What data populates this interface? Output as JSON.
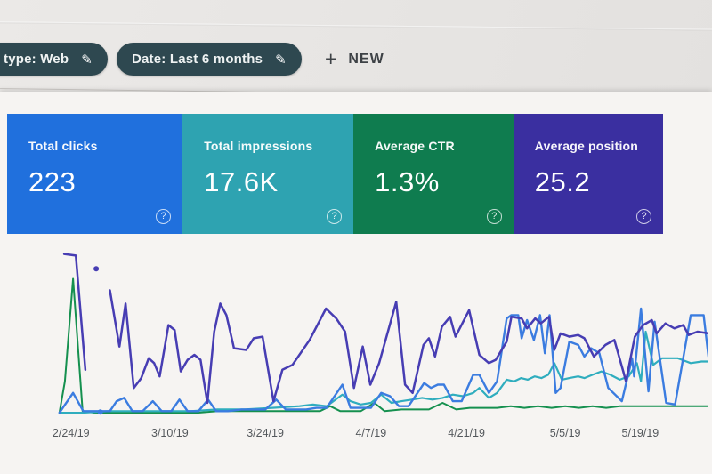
{
  "icons": {
    "pencil": "✎",
    "help": "?",
    "plus": "+"
  },
  "toolbar": {
    "filter_chips": [
      {
        "label": "type: Web"
      },
      {
        "label": "Date: Last 6 months"
      }
    ],
    "new_button": {
      "label": "NEW"
    },
    "chip_color": "#2e4850"
  },
  "cards": [
    {
      "label": "Total clicks",
      "value": "223",
      "color": "#2070dd"
    },
    {
      "label": "Total impressions",
      "value": "17.6K",
      "color": "#2ea3b1"
    },
    {
      "label": "Average CTR",
      "value": "1.3%",
      "color": "#0f7c4f"
    },
    {
      "label": "Average position",
      "value": "25.2",
      "color": "#3a2fa0"
    }
  ],
  "chart_data": {
    "type": "line",
    "title": "",
    "xlabel": "",
    "ylabel": "",
    "grid": false,
    "legend": "none (series colors match metric cards)",
    "x_tick_labels": [
      "2/24/19",
      "3/10/19",
      "3/24/19",
      "4/7/19",
      "4/21/19",
      "5/5/19",
      "5/19/19"
    ],
    "x_tick_positions_pct": [
      6.5,
      21,
      35,
      50.5,
      64.5,
      79,
      90
    ],
    "note": "points are [x%, y%] estimated from pixels; y% is height above baseline (0=baseline, 100=plot top)",
    "series": [
      {
        "name": "ctr",
        "color": "#15904f",
        "width": 2,
        "segments": [
          [
            [
              4.8,
              1
            ],
            [
              5.6,
              20
            ],
            [
              6.8,
              82
            ],
            [
              8.2,
              2
            ],
            [
              10,
              1
            ],
            [
              13,
              1
            ],
            [
              16,
              1
            ],
            [
              19,
              1
            ],
            [
              22,
              1
            ],
            [
              25,
              1
            ],
            [
              28,
              2
            ],
            [
              31,
              2
            ],
            [
              34,
              2
            ],
            [
              37,
              2
            ],
            [
              40,
              2
            ],
            [
              43,
              2
            ],
            [
              44.5,
              5
            ],
            [
              46,
              2
            ],
            [
              49,
              2
            ],
            [
              51,
              7
            ],
            [
              52.5,
              2
            ],
            [
              55,
              3
            ],
            [
              57,
              3
            ],
            [
              59,
              3
            ],
            [
              61,
              7
            ],
            [
              63,
              3
            ],
            [
              65,
              4
            ],
            [
              67,
              4
            ],
            [
              69,
              4
            ],
            [
              71,
              5
            ],
            [
              73,
              4
            ],
            [
              75,
              5
            ],
            [
              77,
              4
            ],
            [
              79,
              5
            ],
            [
              81,
              4
            ],
            [
              83,
              5
            ],
            [
              85,
              4
            ],
            [
              87,
              5
            ],
            [
              89,
              5
            ],
            [
              91,
              5
            ],
            [
              93,
              5
            ],
            [
              95,
              5
            ],
            [
              97,
              5
            ],
            [
              99,
              5
            ],
            [
              100,
              5
            ]
          ]
        ]
      },
      {
        "name": "impressions",
        "color": "#2fadbe",
        "width": 2.2,
        "segments": [
          [
            [
              4.8,
              1
            ],
            [
              8,
              1
            ],
            [
              12,
              2
            ],
            [
              16,
              2
            ],
            [
              20,
              2
            ],
            [
              24,
              2
            ],
            [
              28,
              3
            ],
            [
              32,
              3
            ],
            [
              36,
              4
            ],
            [
              40,
              5
            ],
            [
              42,
              6
            ],
            [
              44,
              5
            ],
            [
              46.3,
              12
            ],
            [
              47.5,
              8
            ],
            [
              49,
              6
            ],
            [
              50.5,
              7
            ],
            [
              52,
              12
            ],
            [
              53.5,
              7
            ],
            [
              55,
              8
            ],
            [
              56.5,
              9
            ],
            [
              58,
              10
            ],
            [
              59.5,
              9
            ],
            [
              61,
              10
            ],
            [
              62.5,
              12
            ],
            [
              64,
              11
            ],
            [
              65.5,
              13
            ],
            [
              66.4,
              16
            ],
            [
              67.8,
              10
            ],
            [
              69,
              13
            ],
            [
              70.4,
              21
            ],
            [
              71.5,
              20
            ],
            [
              72.5,
              22
            ],
            [
              73.5,
              21
            ],
            [
              74.5,
              23
            ],
            [
              75.5,
              22
            ],
            [
              76.5,
              24
            ],
            [
              77.4,
              31
            ],
            [
              78.5,
              21
            ],
            [
              79.6,
              22
            ],
            [
              80.9,
              23
            ],
            [
              81.8,
              22
            ],
            [
              83,
              24
            ],
            [
              84.3,
              26
            ],
            [
              85.6,
              24
            ],
            [
              87,
              21
            ],
            [
              88.3,
              23
            ],
            [
              89.5,
              31
            ],
            [
              90.1,
              20
            ],
            [
              90.8,
              50
            ],
            [
              91.9,
              30
            ],
            [
              93.2,
              34
            ],
            [
              95.5,
              34
            ],
            [
              97.4,
              31
            ],
            [
              99,
              32
            ],
            [
              100,
              32
            ]
          ]
        ]
      },
      {
        "name": "clicks",
        "color": "#3b7ce0",
        "width": 2.4,
        "dots": [
          [
            10.8,
            1.5
          ]
        ],
        "segments": [
          [
            [
              4.8,
              1
            ],
            [
              6.8,
              13
            ],
            [
              8.3,
              2
            ],
            [
              10.2,
              2
            ],
            [
              12.2,
              2
            ],
            [
              13.2,
              8
            ],
            [
              14.3,
              10
            ],
            [
              15.5,
              2
            ],
            [
              17,
              2
            ],
            [
              18.5,
              8
            ],
            [
              19.8,
              2
            ],
            [
              21.2,
              2
            ],
            [
              22.4,
              9
            ],
            [
              23.6,
              2
            ],
            [
              25.2,
              2
            ],
            [
              26.6,
              9
            ],
            [
              27.8,
              2
            ],
            [
              29.5,
              2
            ],
            [
              31.5,
              3
            ],
            [
              33.5,
              3
            ],
            [
              35,
              3
            ],
            [
              36.6,
              9
            ],
            [
              38,
              3
            ],
            [
              39.5,
              3
            ],
            [
              41,
              3
            ],
            [
              42.5,
              4
            ],
            [
              44,
              4
            ],
            [
              46.3,
              18
            ],
            [
              47.5,
              4
            ],
            [
              49,
              4
            ],
            [
              50.5,
              4
            ],
            [
              52,
              13
            ],
            [
              53.3,
              11
            ],
            [
              54.6,
              5
            ],
            [
              56,
              5
            ],
            [
              58.3,
              19
            ],
            [
              59.3,
              16
            ],
            [
              60.3,
              18
            ],
            [
              61.2,
              18
            ],
            [
              62.5,
              8
            ],
            [
              63.8,
              8
            ],
            [
              65.5,
              24
            ],
            [
              66.4,
              24
            ],
            [
              67.8,
              13
            ],
            [
              69,
              20
            ],
            [
              70.4,
              58
            ],
            [
              71.1,
              60
            ],
            [
              72.1,
              60
            ],
            [
              72.6,
              46
            ],
            [
              73.4,
              57
            ],
            [
              74.4,
              45
            ],
            [
              75.3,
              60
            ],
            [
              76,
              37
            ],
            [
              76.7,
              60
            ],
            [
              77.6,
              13
            ],
            [
              78.3,
              16
            ],
            [
              79.6,
              44
            ],
            [
              80.9,
              42
            ],
            [
              81.8,
              35
            ],
            [
              82.8,
              40
            ],
            [
              84,
              37
            ],
            [
              85.3,
              16
            ],
            [
              87.3,
              8
            ],
            [
              88.8,
              34
            ],
            [
              89.1,
              23
            ],
            [
              90.1,
              64
            ],
            [
              91.2,
              14
            ],
            [
              92.1,
              56
            ],
            [
              93.8,
              7
            ],
            [
              95.1,
              6
            ],
            [
              97.4,
              60
            ],
            [
              99.3,
              60
            ],
            [
              99.8,
              42
            ],
            [
              100,
              35
            ]
          ]
        ]
      },
      {
        "name": "position",
        "color": "#473db3",
        "width": 2.5,
        "dots": [
          [
            10.2,
            88
          ]
        ],
        "segments": [
          [
            [
              5.5,
              97
            ],
            [
              7.2,
              96
            ],
            [
              8.6,
              27
            ]
          ],
          [
            [
              12.2,
              75
            ],
            [
              13.6,
              41
            ],
            [
              14.5,
              67
            ],
            [
              15.7,
              16
            ],
            [
              16.8,
              22
            ],
            [
              17.9,
              34
            ],
            [
              18.7,
              31
            ],
            [
              19.5,
              23
            ],
            [
              20.8,
              54
            ],
            [
              21.7,
              51
            ],
            [
              22.6,
              26
            ],
            [
              23.6,
              33
            ],
            [
              24.6,
              36
            ],
            [
              25.5,
              33
            ],
            [
              26.5,
              7
            ],
            [
              27.5,
              50
            ],
            [
              28.4,
              67
            ],
            [
              29.3,
              60
            ],
            [
              30.4,
              40
            ],
            [
              32.2,
              39
            ],
            [
              33.3,
              46
            ],
            [
              34.6,
              47
            ],
            [
              36.2,
              8
            ],
            [
              37.5,
              27
            ],
            [
              39,
              30
            ],
            [
              41.5,
              45
            ],
            [
              43.9,
              64
            ],
            [
              45.4,
              58
            ],
            [
              46.7,
              50
            ],
            [
              48,
              16
            ],
            [
              49.3,
              41
            ],
            [
              50.4,
              18
            ],
            [
              51.7,
              31
            ],
            [
              54.2,
              68
            ],
            [
              55.5,
              18
            ],
            [
              56.6,
              13
            ],
            [
              58.2,
              42
            ],
            [
              59,
              46
            ],
            [
              59.9,
              35
            ],
            [
              60.9,
              53
            ],
            [
              62.1,
              59
            ],
            [
              62.9,
              47
            ],
            [
              64.9,
              63
            ],
            [
              66.4,
              36
            ],
            [
              67.8,
              31
            ],
            [
              68.8,
              33
            ],
            [
              70.4,
              44
            ],
            [
              71.1,
              59
            ],
            [
              72.6,
              58
            ],
            [
              73.4,
              52
            ],
            [
              74.6,
              58
            ],
            [
              75.4,
              55
            ],
            [
              76.6,
              59
            ],
            [
              77.4,
              39
            ],
            [
              78.3,
              49
            ],
            [
              79.6,
              47
            ],
            [
              80.9,
              48
            ],
            [
              81.8,
              46
            ],
            [
              83.2,
              35
            ],
            [
              84.9,
              42
            ],
            [
              86.2,
              45
            ],
            [
              87.5,
              26
            ],
            [
              87.9,
              20
            ],
            [
              89.2,
              47
            ],
            [
              90.4,
              54
            ],
            [
              91.7,
              57
            ],
            [
              92.4,
              49
            ],
            [
              93.7,
              55
            ],
            [
              95,
              52
            ],
            [
              96.3,
              54
            ],
            [
              97.1,
              48
            ],
            [
              98.4,
              50
            ],
            [
              100,
              49
            ]
          ]
        ]
      }
    ]
  }
}
